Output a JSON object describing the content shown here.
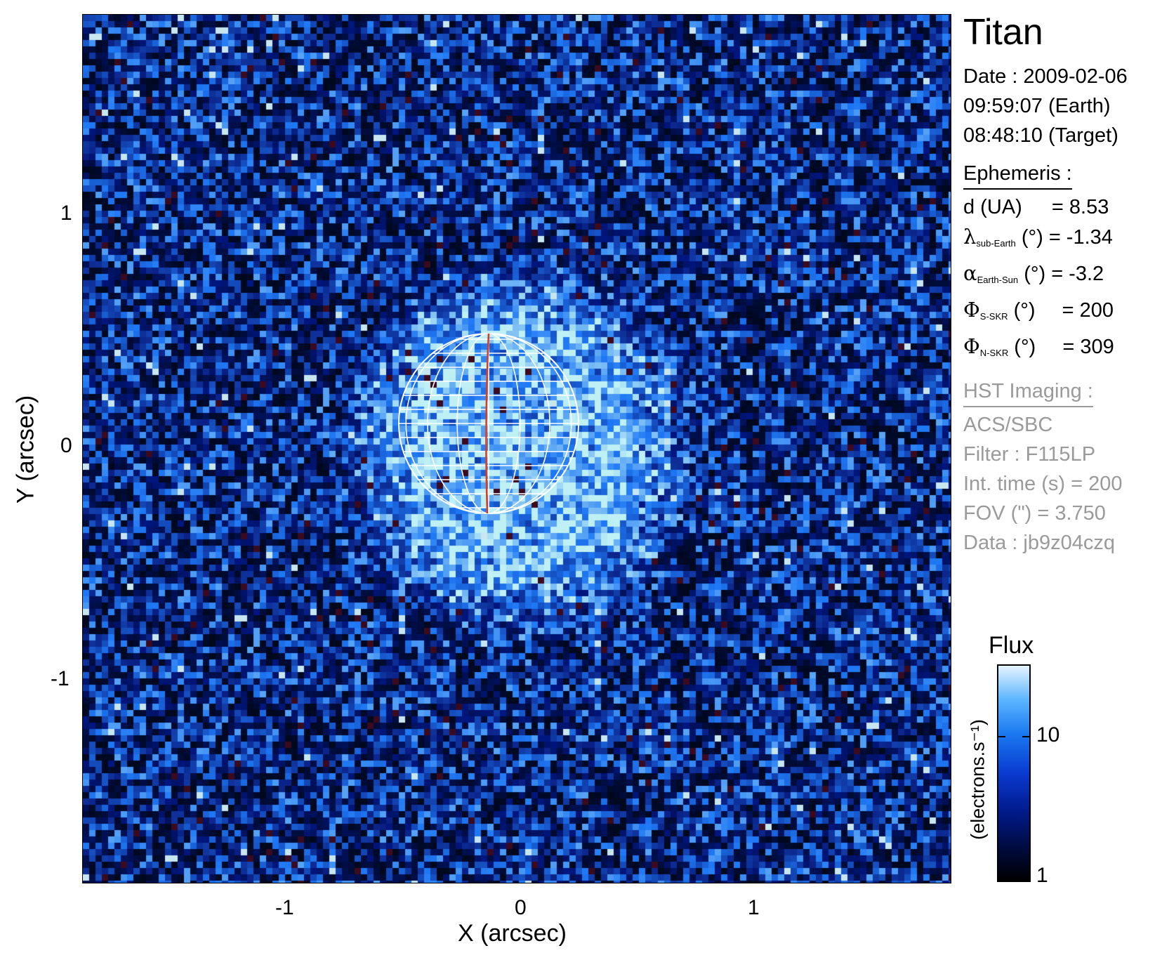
{
  "target": "Titan",
  "date_lines": [
    "Date : 2009-02-06",
    "09:59:07 (Earth)",
    "08:48:10 (Target)"
  ],
  "ephemeris": {
    "heading": "Ephemeris :",
    "d": {
      "label": "d (UA)",
      "value": "= 8.53"
    },
    "lambda": {
      "symbol": "λ",
      "sub": "sub-Earth",
      "unit": "(°)",
      "value": "= -1.34"
    },
    "alpha": {
      "symbol": "α",
      "sub": "Earth-Sun",
      "unit": "(°)",
      "value": "= -3.2"
    },
    "phi_s": {
      "symbol": "Φ",
      "sub": "S-SKR",
      "unit": "(°)",
      "value": "= 200"
    },
    "phi_n": {
      "symbol": "Φ",
      "sub": "N-SKR",
      "unit": "(°)",
      "value": "= 309"
    }
  },
  "hst": {
    "heading": "HST Imaging :",
    "lines": [
      "ACS/SBC",
      "Filter : F115LP",
      "Int. time (s) = 200",
      "FOV (\") = 3.750",
      "Data : jb9z04czq"
    ]
  },
  "axes": {
    "x_title": "X (arcsec)",
    "y_title": "Y (arcsec)",
    "x_ticks": [
      "-1",
      "0",
      "1"
    ],
    "y_ticks": [
      "1",
      "0",
      "-1"
    ]
  },
  "colorbar": {
    "title": "Flux",
    "unit": "(electrons.s⁻¹)",
    "ticks": [
      "10",
      "1"
    ]
  }
}
